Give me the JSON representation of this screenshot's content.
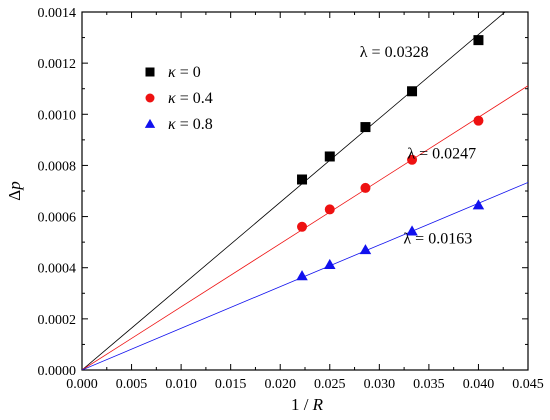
{
  "chart_data": {
    "type": "scatter",
    "xlabel_parts": [
      "1",
      "/",
      "R"
    ],
    "ylabel_parts": [
      "Δ",
      "p"
    ],
    "xlim": [
      0,
      0.045
    ],
    "ylim": [
      0,
      0.0014
    ],
    "xticks": [
      0,
      0.005,
      0.01,
      0.015,
      0.02,
      0.025,
      0.03,
      0.035,
      0.04,
      0.045
    ],
    "xtick_labels": [
      "0.000",
      "0.005",
      "0.010",
      "0.015",
      "0.020",
      "0.025",
      "0.030",
      "0.035",
      "0.040",
      "0.045"
    ],
    "yticks": [
      0,
      0.0002,
      0.0004,
      0.0006,
      0.0008,
      0.001,
      0.0012,
      0.0014
    ],
    "ytick_labels": [
      "0.0000",
      "0.0002",
      "0.0004",
      "0.0006",
      "0.0008",
      "0.0010",
      "0.0012",
      "0.0014"
    ],
    "grid": false,
    "legend_position": "top-left",
    "x": [
      0.0222,
      0.025,
      0.0286,
      0.0333,
      0.04
    ],
    "series": [
      {
        "name": "κ = 0",
        "marker": "square",
        "color": "#000000",
        "line_color": "#000000",
        "values": [
          0.000745,
          0.000835,
          0.00095,
          0.00109,
          0.00129
        ],
        "fit_slope": 0.0328,
        "annotation": "λ = 0.0328"
      },
      {
        "name": "κ = 0.4",
        "marker": "circle",
        "color": "#ee1111",
        "line_color": "#ee1111",
        "values": [
          0.00056,
          0.000628,
          0.000712,
          0.000822,
          0.000975
        ],
        "fit_slope": 0.0247,
        "annotation": "λ = 0.0247"
      },
      {
        "name": "κ = 0.8",
        "marker": "triangle",
        "color": "#1111ee",
        "line_color": "#1111ee",
        "values": [
          0.000368,
          0.000412,
          0.00047,
          0.000543,
          0.000645
        ],
        "fit_slope": 0.0163,
        "annotation": "λ = 0.0163"
      }
    ]
  }
}
